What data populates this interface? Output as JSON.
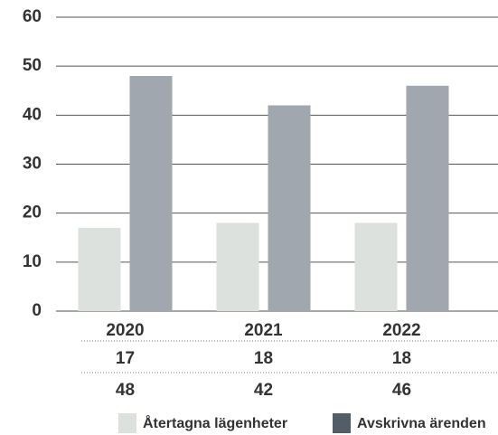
{
  "chart_data": {
    "type": "bar",
    "categories": [
      "2020",
      "2021",
      "2022"
    ],
    "series": [
      {
        "name": "Återtagna lägenheter",
        "color": "#dde1dd",
        "legend_color": "#dde1dd",
        "values": [
          17,
          18,
          18
        ]
      },
      {
        "name": "Avskrivna ärenden",
        "color": "#a0a7ae",
        "legend_color": "#535d67",
        "values": [
          48,
          42,
          46
        ]
      }
    ],
    "ylim": [
      0,
      60
    ],
    "yticks": [
      0,
      10,
      20,
      30,
      40,
      50,
      60
    ],
    "grid": true,
    "legend": "bottom"
  }
}
